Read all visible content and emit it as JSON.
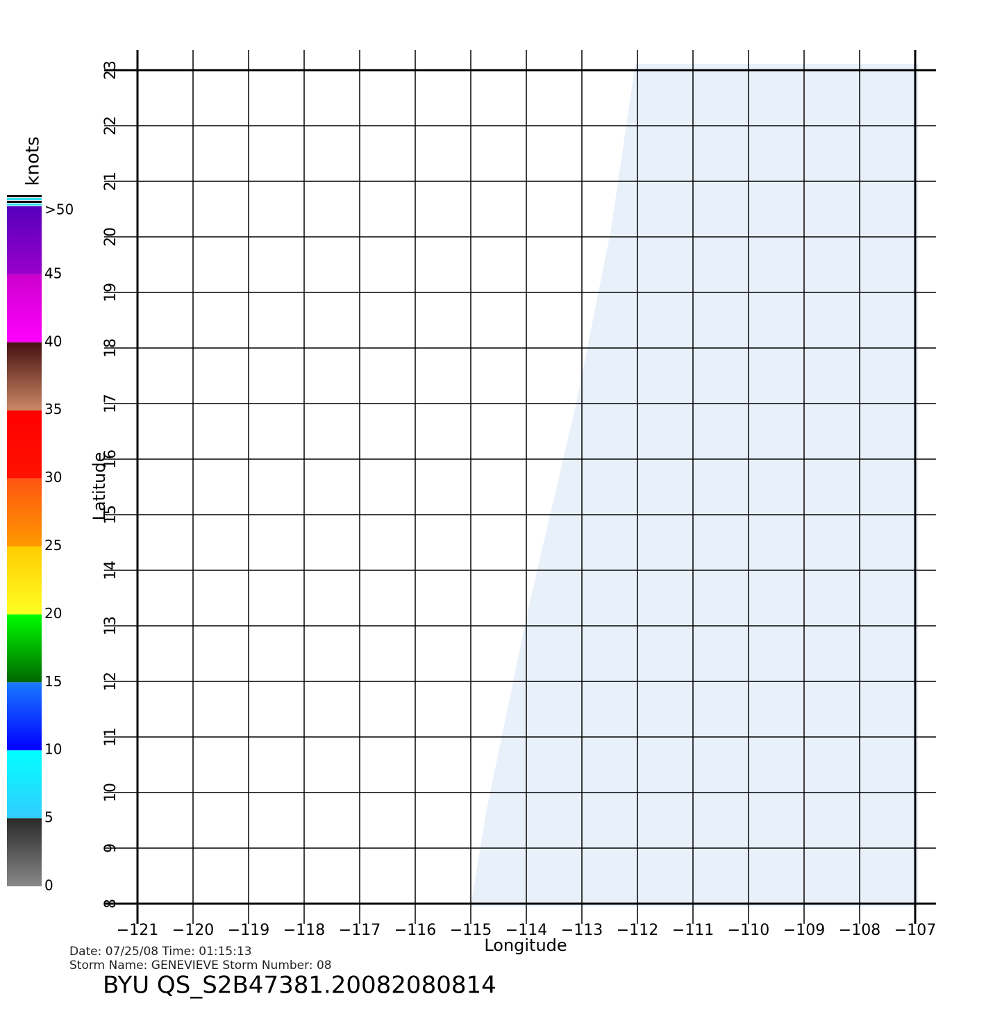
{
  "chart_data": {
    "type": "vector",
    "xlabel": "Longitude",
    "ylabel": "Latitude",
    "xlim": [
      -121,
      -107
    ],
    "ylim": [
      8,
      23
    ],
    "xticks": [
      {
        "value": -121,
        "label": "−121"
      },
      {
        "value": -120,
        "label": "−120"
      },
      {
        "value": -119,
        "label": "−119"
      },
      {
        "value": -118,
        "label": "−118"
      },
      {
        "value": -117,
        "label": "−117"
      },
      {
        "value": -116,
        "label": "−116"
      },
      {
        "value": -115,
        "label": "−115"
      },
      {
        "value": -114,
        "label": "−114"
      },
      {
        "value": -113,
        "label": "−113"
      },
      {
        "value": -112,
        "label": "−112"
      },
      {
        "value": -111,
        "label": "−111"
      },
      {
        "value": -110,
        "label": "−110"
      },
      {
        "value": -109,
        "label": "−109"
      },
      {
        "value": -108,
        "label": "−108"
      },
      {
        "value": -107,
        "label": "−107"
      }
    ],
    "yticks": [
      8,
      9,
      10,
      11,
      12,
      13,
      14,
      15,
      16,
      17,
      18,
      19,
      20,
      21,
      22,
      23
    ],
    "grid": true,
    "colorbar": {
      "label": "knots",
      "ticks": [
        0,
        5,
        10,
        15,
        20,
        25,
        30,
        35,
        40,
        45,
        {
          "value": 50,
          "label": ">50"
        }
      ],
      "colors": [
        [
          "#888888",
          "#2a2a2a"
        ],
        [
          "#33ccff",
          "#00ffff"
        ],
        [
          "#0000ff",
          "#1a7aff"
        ],
        [
          "#006600",
          "#00ff00"
        ],
        [
          "#ffff22",
          "#ffcc00"
        ],
        [
          "#ff9900",
          "#ff5511"
        ],
        [
          "#ff1100",
          "#ff0000"
        ],
        [
          "#cc8866",
          "#441010"
        ],
        [
          "#ff00ff",
          "#cc00cc"
        ],
        [
          "#9900cc",
          "#5500bb"
        ]
      ]
    },
    "footer": [
      "Date: 07/25/08   Time: 01:15:13",
      "Storm  Name: GENEVIEVE   Storm  Number: 08",
      "BYU  QS_S2B47381.20082080814"
    ]
  }
}
